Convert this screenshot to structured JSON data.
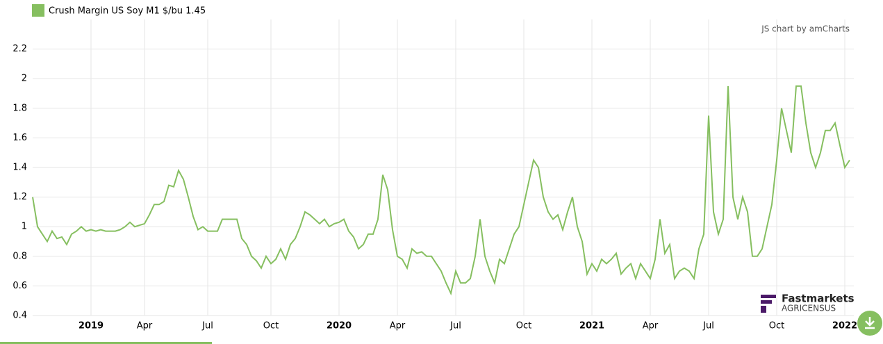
{
  "chart_data": {
    "type": "line",
    "credit": "JS chart by amCharts",
    "logo": {
      "name": "Fastmarkets",
      "sub": "AGRICENSUS"
    },
    "categories": [
      null,
      null,
      null,
      null,
      null,
      null,
      null,
      null,
      null,
      null,
      null,
      null,
      "2019",
      null,
      null,
      null,
      null,
      null,
      null,
      null,
      null,
      null,
      null,
      "Apr",
      null,
      null,
      null,
      null,
      null,
      null,
      null,
      null,
      null,
      null,
      null,
      null,
      "Jul",
      null,
      null,
      null,
      null,
      null,
      null,
      null,
      null,
      null,
      null,
      null,
      null,
      "Oct",
      null,
      null,
      null,
      null,
      null,
      null,
      null,
      null,
      null,
      null,
      null,
      null,
      null,
      "2020",
      null,
      null,
      null,
      null,
      null,
      null,
      null,
      null,
      null,
      null,
      null,
      "Apr",
      null,
      null,
      null,
      null,
      null,
      null,
      null,
      null,
      null,
      null,
      null,
      "Jul",
      null,
      null,
      null,
      null,
      null,
      null,
      null,
      null,
      null,
      null,
      null,
      null,
      null,
      "Oct",
      null,
      null,
      null,
      null,
      null,
      null,
      null,
      null,
      null,
      null,
      null,
      null,
      null,
      "2021",
      null,
      null,
      null,
      null,
      null,
      null,
      null,
      null,
      null,
      null,
      null,
      "Apr",
      null,
      null,
      null,
      null,
      null,
      null,
      null,
      null,
      null,
      null,
      null,
      "Jul",
      null,
      null,
      null,
      null,
      null,
      null,
      null,
      null,
      null,
      null,
      null,
      null,
      null,
      "Oct",
      null,
      null,
      null,
      null,
      null,
      null,
      null,
      null,
      null,
      null,
      null,
      null,
      null,
      "2022",
      null
    ],
    "series": [
      {
        "name": "Crush Margin US Soy M1 $/bu 1.45",
        "color": "#86bf60",
        "values": [
          1.2,
          1.0,
          0.95,
          0.9,
          0.97,
          0.92,
          0.93,
          0.88,
          0.95,
          0.97,
          1.0,
          0.97,
          0.98,
          0.97,
          0.98,
          0.97,
          0.97,
          0.97,
          0.98,
          1.0,
          1.03,
          1.0,
          1.01,
          1.02,
          1.08,
          1.15,
          1.15,
          1.17,
          1.28,
          1.27,
          1.38,
          1.32,
          1.2,
          1.07,
          0.98,
          1.0,
          0.97,
          0.97,
          0.97,
          1.05,
          1.05,
          1.05,
          1.05,
          0.92,
          0.88,
          0.8,
          0.77,
          0.72,
          0.8,
          0.75,
          0.78,
          0.85,
          0.78,
          0.88,
          0.92,
          1.0,
          1.1,
          1.08,
          1.05,
          1.02,
          1.05,
          1.0,
          1.02,
          1.03,
          1.05,
          0.97,
          0.93,
          0.85,
          0.88,
          0.95,
          0.95,
          1.05,
          1.35,
          1.25,
          0.98,
          0.8,
          0.78,
          0.72,
          0.85,
          0.82,
          0.83,
          0.8,
          0.8,
          0.75,
          0.7,
          0.62,
          0.55,
          0.7,
          0.62,
          0.62,
          0.65,
          0.8,
          1.05,
          0.8,
          0.7,
          0.62,
          0.78,
          0.75,
          0.85,
          0.95,
          1.0,
          1.15,
          1.3,
          1.45,
          1.4,
          1.2,
          1.1,
          1.05,
          1.08,
          0.98,
          1.1,
          1.2,
          1.0,
          0.9,
          0.68,
          0.75,
          0.7,
          0.78,
          0.75,
          0.78,
          0.82,
          0.68,
          0.72,
          0.75,
          0.65,
          0.75,
          0.7,
          0.65,
          0.78,
          1.05,
          0.82,
          0.88,
          0.65,
          0.7,
          0.72,
          0.7,
          0.65,
          0.85,
          0.95,
          1.75,
          1.1,
          0.95,
          1.05,
          1.95,
          1.2,
          1.05,
          1.2,
          1.1,
          0.8,
          0.8,
          0.85,
          1.0,
          1.15,
          1.45,
          1.8,
          1.65,
          1.5,
          1.95,
          1.95,
          1.7,
          1.5,
          1.4,
          1.5,
          1.65,
          1.65,
          1.7,
          1.55,
          1.4,
          1.45
        ]
      }
    ],
    "ylim": [
      0.4,
      2.4
    ],
    "yticks": [
      0.4,
      0.6,
      0.8,
      1.0,
      1.2,
      1.4,
      1.6,
      1.8,
      2.0,
      2.2
    ],
    "grid": true
  }
}
